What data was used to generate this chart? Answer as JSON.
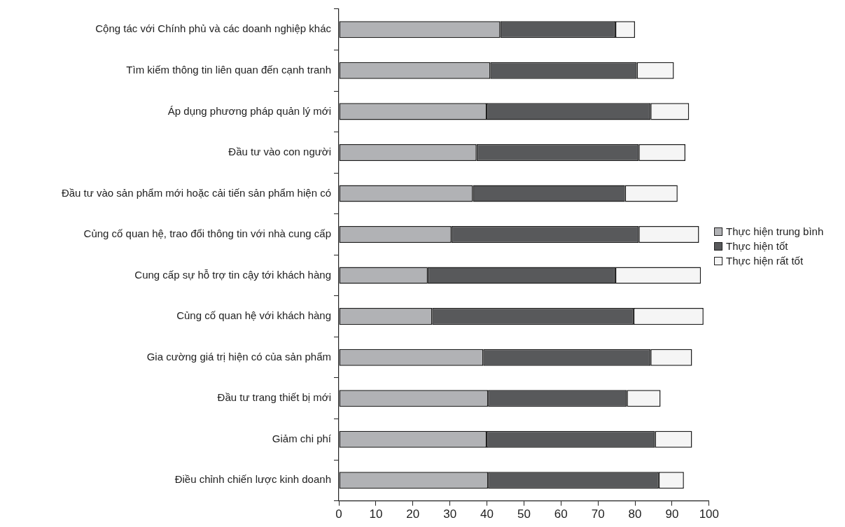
{
  "chart_data": {
    "type": "bar",
    "orientation": "horizontal",
    "stacked": true,
    "legend": "right",
    "categories": [
      "Cộng tác với Chính phủ và các doanh nghiệp khác",
      "Tìm kiếm thông tin liên quan đến cạnh tranh",
      "Áp dụng phương pháp quản lý mới",
      "Đầu tư vào con người",
      "Đầu tư vào sản phẩm mới hoặc cải tiến sản phẩm hiện có",
      "Củng cố quan hệ, trao đổi thông tin với nhà cung cấp",
      "Cung cấp sự hỗ trợ tin cậy tới khách hàng",
      "Củng cố quan hệ với khách hàng",
      "Gia cường giá trị hiện có của sản phẩm",
      "Đầu tư trang thiết bị mới",
      "Giảm chi phí",
      "Điều chỉnh chiến lược kinh doanh"
    ],
    "series": [
      {
        "name": "Thực hiện trung bình",
        "color": "#b1b2b5",
        "values": [
          43.6,
          40.9,
          39.9,
          37.2,
          36.2,
          30.4,
          24.0,
          25.2,
          39.0,
          40.3,
          39.9,
          40.3
        ]
      },
      {
        "name": "Thực hiện tốt",
        "color": "#58595b",
        "values": [
          31.1,
          39.6,
          44.3,
          43.8,
          41.1,
          50.6,
          50.7,
          54.4,
          45.2,
          37.5,
          45.5,
          46.1
        ]
      },
      {
        "name": "Thực hiện rất tốt",
        "color": "#f5f5f5",
        "values": [
          5.3,
          10.0,
          10.4,
          12.6,
          14.2,
          16.3,
          23.1,
          18.9,
          11.2,
          9.1,
          10.0,
          6.8
        ]
      }
    ],
    "xlim": [
      0,
      100
    ],
    "xticks": [
      0,
      10,
      20,
      30,
      40,
      50,
      60,
      70,
      80,
      90,
      100
    ]
  }
}
